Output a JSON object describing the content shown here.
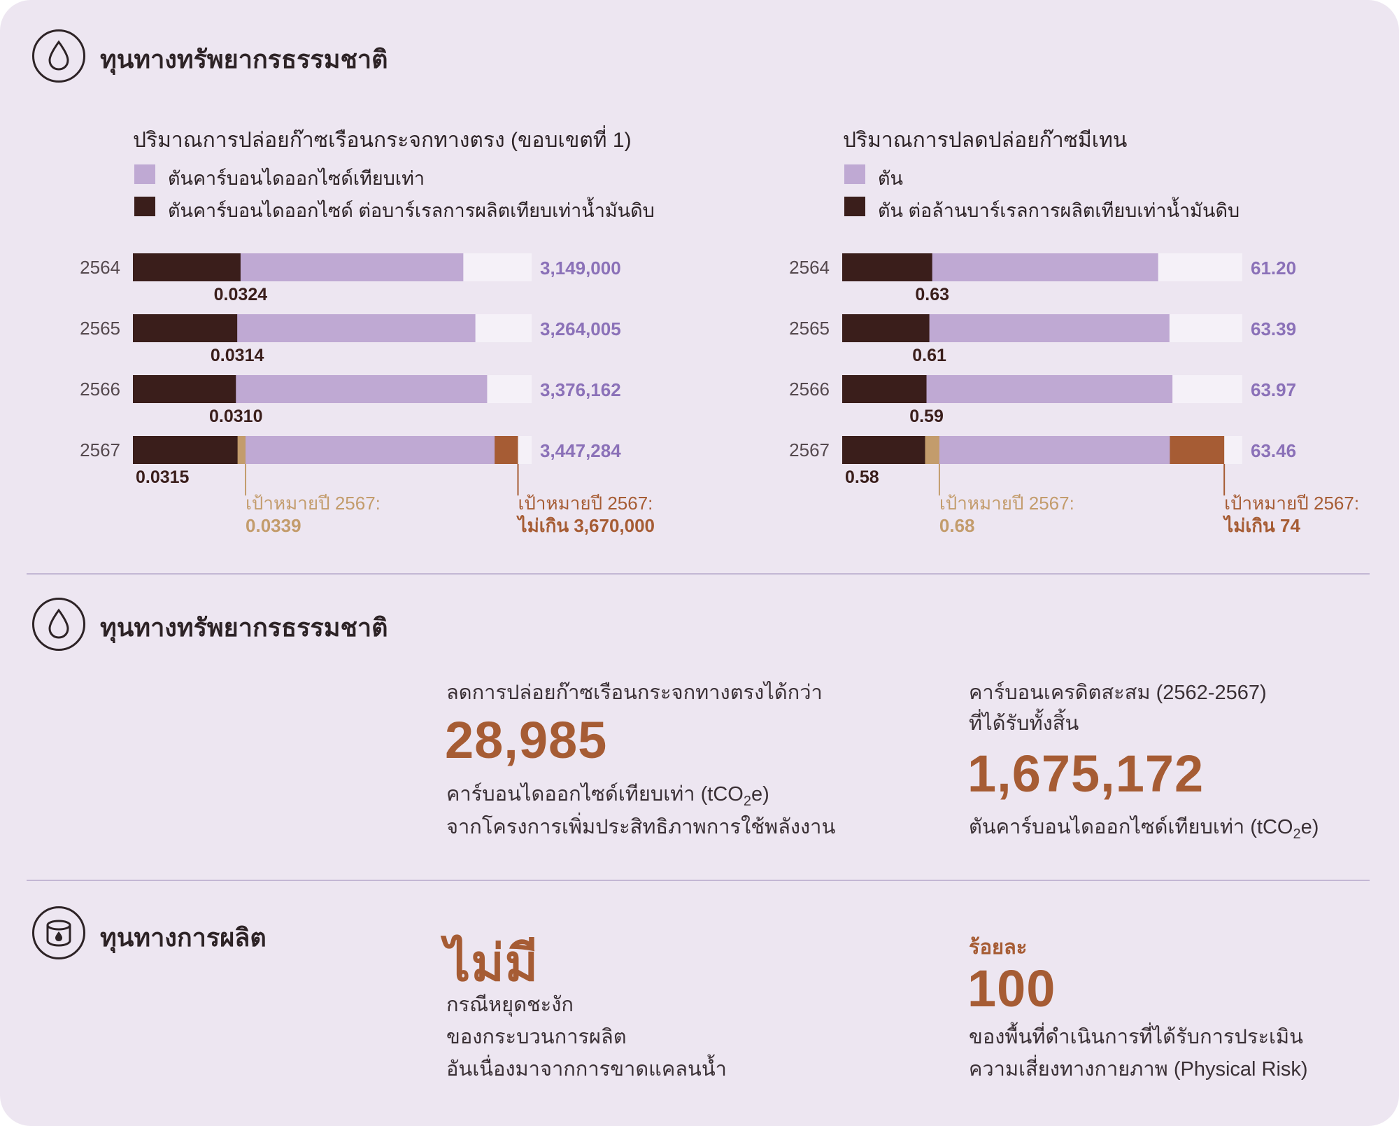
{
  "section1": {
    "title": "ทุนทางทรัพยากรธรรมชาติ",
    "icon": "water-drop-icon"
  },
  "section2": {
    "title": "ทุนทางทรัพยากรธรรมชาติ",
    "icon": "water-drop-icon"
  },
  "section3": {
    "title": "ทุนทางการผลิต",
    "icon": "oil-barrel-icon"
  },
  "colors": {
    "total": "#bfa9d3",
    "intensity": "#3a1e1b",
    "track": "#f5f1f8",
    "target_intensity": "#c39c6c",
    "target_total": "#a65c34",
    "value_text": "#8b71b8"
  },
  "chart_data": [
    {
      "type": "bar",
      "title": "ปริมาณการปล่อยก๊าซเรือนกระจกทางตรง (ขอบเขตที่ 1)",
      "legend": [
        {
          "name": "ตันคาร์บอนไดออกไซด์เทียบเท่า",
          "color": "#bfa9d3"
        },
        {
          "name": "ตันคาร์บอนไดออกไซด์ ต่อบาร์เรลการผลิตเทียบเท่าน้ำมันดิบ",
          "color": "#3a1e1b"
        }
      ],
      "categories": [
        "2564",
        "2565",
        "2566",
        "2567"
      ],
      "total_display": [
        "3,149,000",
        "3,264,005",
        "3,376,162",
        "3,447,284"
      ],
      "total_values": [
        3149000,
        3264005,
        3376162,
        3447284
      ],
      "intensity_display": [
        "0.0324",
        "0.0314",
        "0.0310",
        "0.0315"
      ],
      "intensity_values": [
        0.0324,
        0.0314,
        0.031,
        0.0315
      ],
      "total_max": 3800000,
      "intensity_max": 0.12,
      "target_intensity": {
        "label": "เป้าหมายปี 2567:",
        "value_text": "0.0339",
        "value": 0.0339
      },
      "target_total": {
        "label": "เป้าหมายปี 2567:",
        "value_text": "ไม่เกิน 3,670,000",
        "value": 3670000
      }
    },
    {
      "type": "bar",
      "title": "ปริมาณการปลดปล่อยก๊าซมีเทน",
      "legend": [
        {
          "name": "ตัน",
          "color": "#bfa9d3"
        },
        {
          "name": "ตัน ต่อล้านบาร์เรลการผลิตเทียบเท่าน้ำมันดิบ",
          "color": "#3a1e1b"
        }
      ],
      "categories": [
        "2564",
        "2565",
        "2566",
        "2567"
      ],
      "total_display": [
        "61.20",
        "63.39",
        "63.97",
        "63.46"
      ],
      "total_values": [
        61.2,
        63.39,
        63.97,
        63.46
      ],
      "intensity_display": [
        "0.63",
        "0.61",
        "0.59",
        "0.58"
      ],
      "intensity_values": [
        0.63,
        0.61,
        0.59,
        0.58
      ],
      "total_max": 77.5,
      "intensity_max": 2.8,
      "target_intensity": {
        "label": "เป้าหมายปี 2567:",
        "value_text": "0.68",
        "value": 0.68
      },
      "target_total": {
        "label": "เป้าหมายปี 2567:",
        "value_text": "ไม่เกิน 74",
        "value": 74
      }
    }
  ],
  "kpi": {
    "ghg_reduction": {
      "label": "ลดการปล่อยก๊าซเรือนกระจกทางตรงได้กว่า",
      "value": "28,985",
      "unit_pre": "คาร์บอนไดออกไซด์เทียบเท่า (tCO",
      "unit_sub": "2",
      "unit_post": "e)",
      "desc": "จากโครงการเพิ่มประสิทธิภาพการใช้พลังงาน"
    },
    "carbon_credit": {
      "label_line1": "คาร์บอนเครดิตสะสม (2562-2567)",
      "label_line2": "ที่ได้รับทั้งสิ้น",
      "value": "1,675,172",
      "unit_pre": "ตันคาร์บอนไดออกไซด์เทียบเท่า (tCO",
      "unit_sub": "2",
      "unit_post": "e)"
    },
    "disruption": {
      "value": "ไม่มี",
      "desc_line1": "กรณีหยุดชะงัก",
      "desc_line2": "ของกระบวนการผลิต",
      "desc_line3": "อันเนื่องมาจากการขาดแคลนน้ำ"
    },
    "physical_risk": {
      "prefix": "ร้อยละ",
      "value": "100",
      "desc_line1": "ของพื้นที่ดำเนินการที่ได้รับการประเมิน",
      "desc_line2": "ความเสี่ยงทางกายภาพ (Physical Risk)"
    }
  }
}
